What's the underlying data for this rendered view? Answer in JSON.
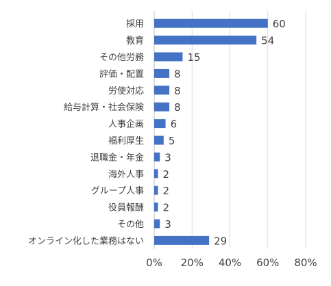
{
  "chart_data": {
    "type": "bar",
    "orientation": "horizontal",
    "categories": [
      "採用",
      "教育",
      "その他労務",
      "評価・配置",
      "労使対応",
      "給与計算・社会保険",
      "人事企画",
      "福利厚生",
      "退職金・年金",
      "海外人事",
      "グループ人事",
      "役員報酬",
      "その他",
      "オンライン化した業務はない"
    ],
    "values": [
      60,
      54,
      15,
      8,
      8,
      8,
      6,
      5,
      3,
      2,
      2,
      2,
      3,
      29
    ],
    "data_labels": [
      "60",
      "54",
      "15",
      "8",
      "8",
      "8",
      "6",
      "5",
      "3",
      "2",
      "2",
      "2",
      "3",
      "29"
    ],
    "x_ticks": [
      "0%",
      "20%",
      "40%",
      "60%",
      "80%"
    ],
    "xlim": [
      0,
      80
    ],
    "grid": true,
    "bar_color": "#4472c4",
    "title": "",
    "xlabel": "",
    "ylabel": ""
  }
}
